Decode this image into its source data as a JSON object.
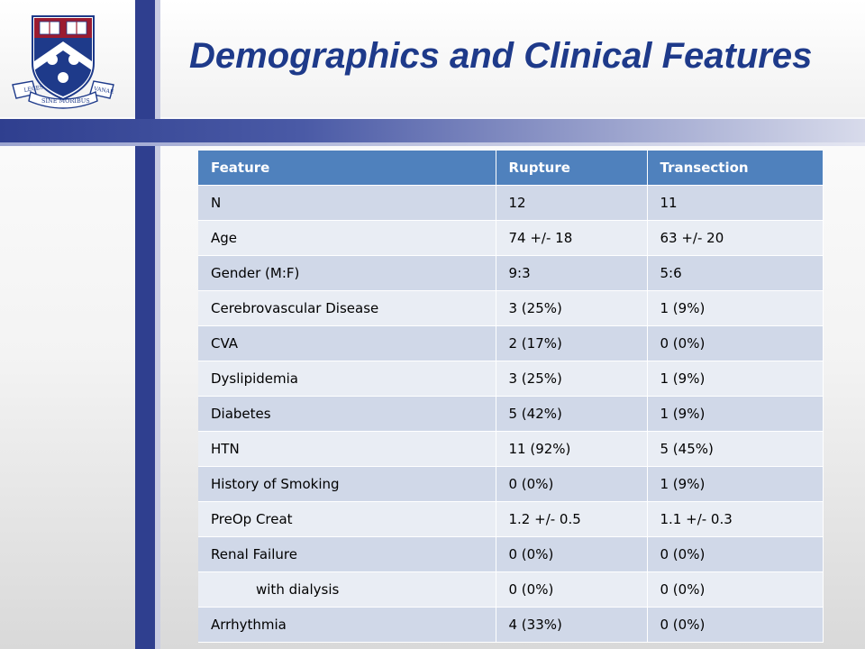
{
  "slide": {
    "title": "Demographics and Clinical Features"
  },
  "logo": {
    "motto": "SINE MORIBUS",
    "left_ribbon": "LEGES",
    "right_ribbon": "VANAE",
    "icon": "university-shield-icon",
    "colors": {
      "shield_red": "#9b1b30",
      "shield_blue": "#1e3a8a"
    }
  },
  "table": {
    "headers": [
      "Feature",
      "Rupture",
      "Transection"
    ],
    "rows": [
      [
        "N",
        "12",
        "11"
      ],
      [
        "Age",
        "74 +/- 18",
        "63 +/- 20"
      ],
      [
        "Gender (M:F)",
        "9:3",
        "5:6"
      ],
      [
        "Cerebrovascular Disease",
        "3 (25%)",
        "1 (9%)"
      ],
      [
        "CVA",
        "2 (17%)",
        "0 (0%)"
      ],
      [
        "Dyslipidemia",
        "3 (25%)",
        "1 (9%)"
      ],
      [
        "Diabetes",
        "5 (42%)",
        "1 (9%)"
      ],
      [
        "HTN",
        "11 (92%)",
        "5 (45%)"
      ],
      [
        "History of Smoking",
        "0 (0%)",
        "1 (9%)"
      ],
      [
        "PreOp Creat",
        "1.2 +/- 0.5",
        "1.1 +/- 0.3"
      ],
      [
        "Renal Failure",
        "0 (0%)",
        "0 (0%)"
      ],
      [
        "with dialysis",
        "0 (0%)",
        "0 (0%)"
      ],
      [
        "Arrhythmia",
        "4 (33%)",
        "0 (0%)"
      ]
    ],
    "colors": {
      "header": "#4f81bd",
      "row_band_1": "#d0d8e8",
      "row_band_2": "#e9edf4"
    }
  }
}
